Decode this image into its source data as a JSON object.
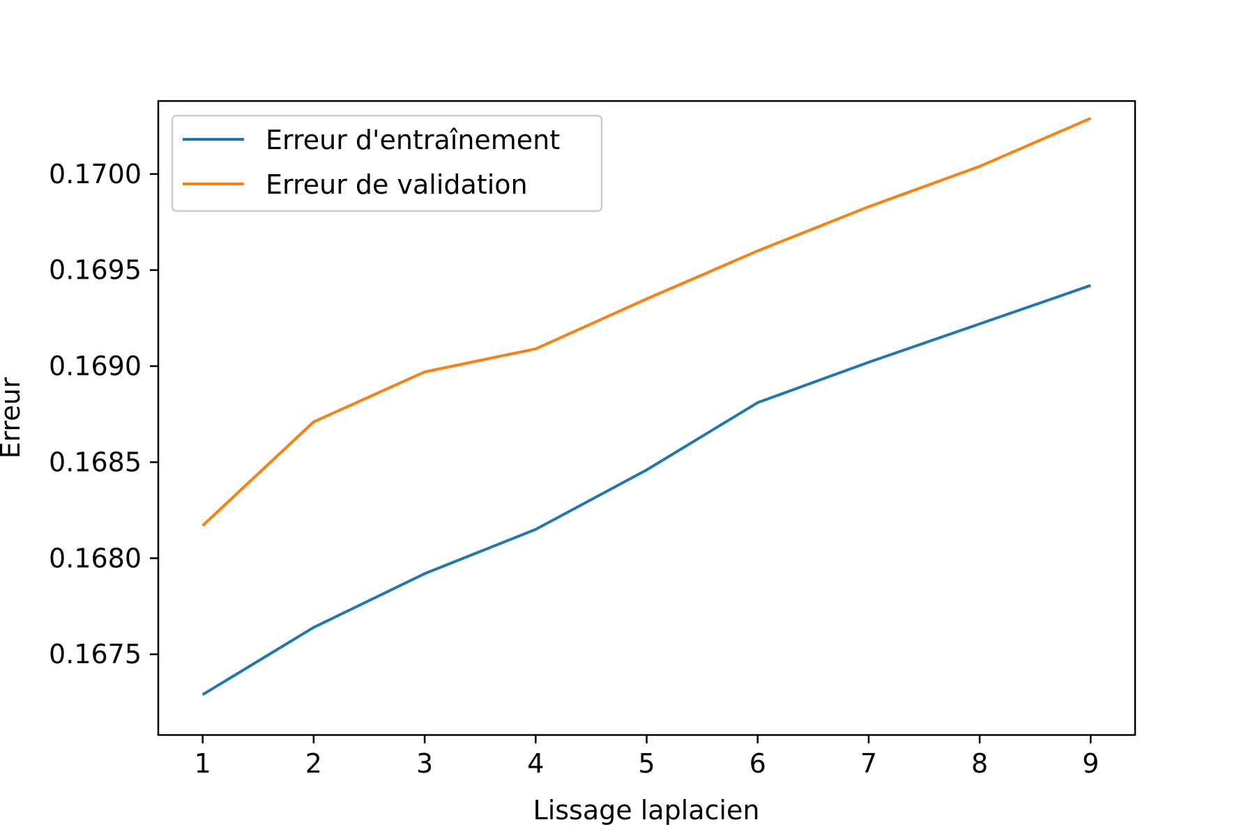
{
  "chart_data": {
    "type": "line",
    "title": "",
    "xlabel": "Lissage laplacien",
    "ylabel": "Erreur",
    "x": [
      1,
      2,
      3,
      4,
      5,
      6,
      7,
      8,
      9
    ],
    "xticks": [
      "1",
      "2",
      "3",
      "4",
      "5",
      "6",
      "7",
      "8",
      "9"
    ],
    "yticks": [
      "0.1675",
      "0.1680",
      "0.1685",
      "0.1690",
      "0.1695",
      "0.1700"
    ],
    "ytick_values": [
      0.1675,
      0.168,
      0.1685,
      0.169,
      0.1695,
      0.17
    ],
    "xlim": [
      0.6,
      9.4
    ],
    "ylim": [
      0.16708,
      0.17038
    ],
    "grid": false,
    "legend_position": "upper left",
    "series": [
      {
        "name": "Erreur d'entraînement",
        "color": "#1f77b4",
        "values": [
          0.16729,
          0.16764,
          0.16792,
          0.16815,
          0.16846,
          0.16881,
          0.16902,
          0.16922,
          0.16942
        ]
      },
      {
        "name": "Erreur de validation",
        "color": "#ff7f0e",
        "values": [
          0.16817,
          0.16871,
          0.16897,
          0.16909,
          0.16935,
          0.1696,
          0.16983,
          0.17004,
          0.17029
        ]
      }
    ]
  }
}
